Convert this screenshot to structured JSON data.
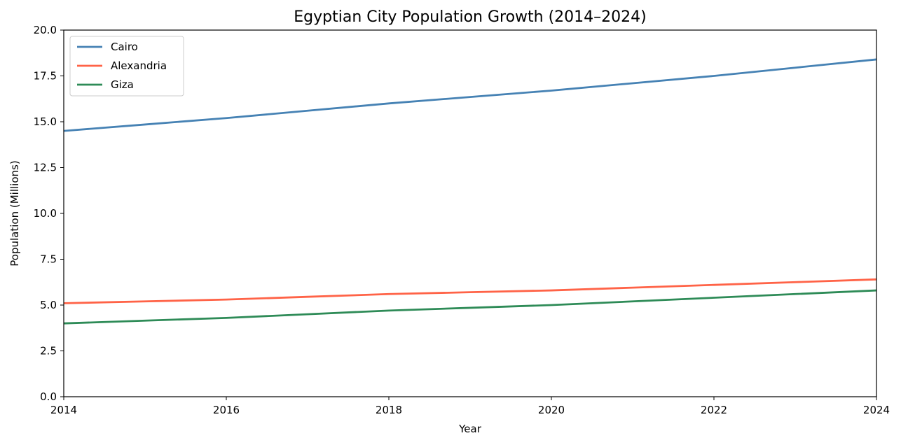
{
  "chart_data": {
    "type": "line",
    "title": "Egyptian City Population Growth (2014–2024)",
    "xlabel": "Year",
    "ylabel": "Population (Millions)",
    "xlim": [
      2014,
      2024
    ],
    "ylim": [
      0,
      20
    ],
    "x_ticks": [
      "2014",
      "2016",
      "2018",
      "2020",
      "2022",
      "2024"
    ],
    "y_ticks": [
      "0.0",
      "2.5",
      "5.0",
      "7.5",
      "10.0",
      "12.5",
      "15.0",
      "17.5",
      "20.0"
    ],
    "x": [
      2014,
      2015,
      2016,
      2017,
      2018,
      2019,
      2020,
      2021,
      2022,
      2023,
      2024
    ],
    "series": [
      {
        "name": "Cairo",
        "color": "#4682b4",
        "values": [
          14.5,
          14.85,
          15.2,
          15.6,
          16.0,
          16.35,
          16.7,
          17.1,
          17.5,
          17.95,
          18.4
        ]
      },
      {
        "name": "Alexandria",
        "color": "#ff6347",
        "values": [
          5.1,
          5.2,
          5.3,
          5.45,
          5.6,
          5.7,
          5.8,
          5.95,
          6.1,
          6.25,
          6.4
        ]
      },
      {
        "name": "Giza",
        "color": "#2e8b57",
        "values": [
          4.0,
          4.15,
          4.3,
          4.5,
          4.7,
          4.85,
          5.0,
          5.2,
          5.4,
          5.6,
          5.8
        ]
      }
    ],
    "grid": false,
    "legend_position": "top-left"
  }
}
